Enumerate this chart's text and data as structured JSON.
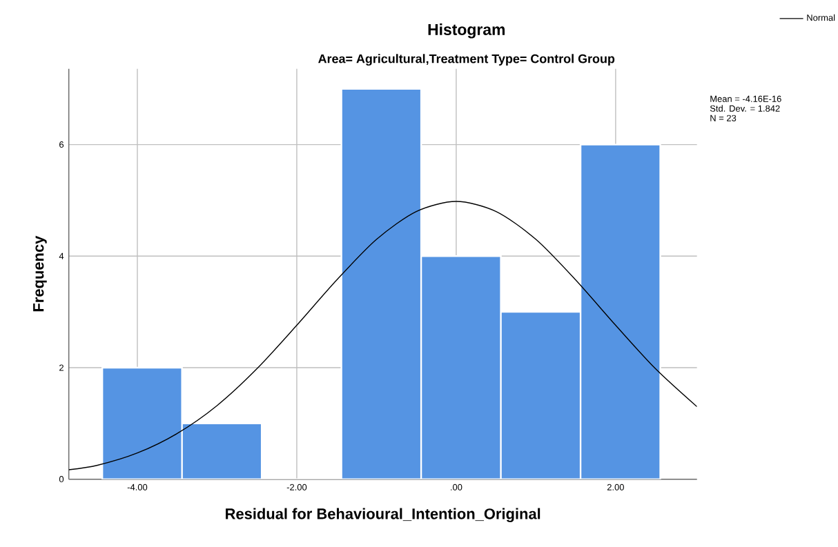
{
  "chart_data": {
    "type": "histogram",
    "title": "Histogram",
    "subtitle": "Area= Agricultural,Treatment Type= Control Group",
    "xlabel": "Residual for Behavioural_Intention_Original",
    "ylabel": "Frequency",
    "bins": [
      -4.44,
      -3.44,
      -2.44,
      -1.44,
      -0.44,
      0.56,
      1.56,
      2.56
    ],
    "values": [
      2,
      1,
      0,
      7,
      4,
      3,
      6
    ],
    "color": "#5594e3",
    "series": [
      {
        "name": "Normal",
        "type": "line",
        "color": "#000000",
        "x": [
          -4.86,
          -4.5,
          -4,
          -3.5,
          -3,
          -2.5,
          -2,
          -1.5,
          -1,
          -0.5,
          0,
          0.5,
          1,
          1.5,
          2,
          2.5,
          3.02
        ],
        "values": [
          0.17,
          0.25,
          0.47,
          0.82,
          1.32,
          1.98,
          2.76,
          3.57,
          4.3,
          4.8,
          4.98,
          4.8,
          4.3,
          3.57,
          2.76,
          1.98,
          1.3
        ]
      }
    ],
    "xlim": [
      -4.86,
      3.02
    ],
    "ylim": [
      0,
      7.36
    ],
    "xticks": [
      {
        "value": -4,
        "label": "-4.00"
      },
      {
        "value": -2,
        "label": "-2.00"
      },
      {
        "value": 0,
        "label": ".00"
      },
      {
        "value": 2,
        "label": "2.00"
      }
    ],
    "yticks": [
      0,
      2,
      4,
      6
    ],
    "grid": true,
    "legend": "top right",
    "annotations": [
      "Mean = -4.16E-16",
      "Std. Dev. = 1.842",
      "N = 23"
    ]
  }
}
